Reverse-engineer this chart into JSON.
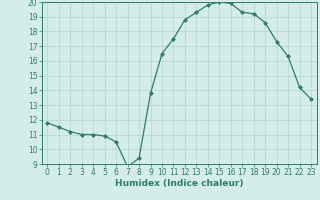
{
  "x": [
    0,
    1,
    2,
    3,
    4,
    5,
    6,
    7,
    8,
    9,
    10,
    11,
    12,
    13,
    14,
    15,
    16,
    17,
    18,
    19,
    20,
    21,
    22,
    23
  ],
  "y": [
    11.8,
    11.5,
    11.2,
    11.0,
    11.0,
    10.9,
    10.5,
    8.8,
    9.4,
    13.8,
    16.5,
    17.5,
    18.8,
    19.3,
    19.8,
    20.0,
    19.9,
    19.3,
    19.2,
    18.6,
    17.3,
    16.3,
    14.2,
    13.4
  ],
  "xlabel": "Humidex (Indice chaleur)",
  "ylim": [
    9,
    20
  ],
  "xlim": [
    -0.5,
    23.5
  ],
  "yticks": [
    9,
    10,
    11,
    12,
    13,
    14,
    15,
    16,
    17,
    18,
    19,
    20
  ],
  "xticks": [
    0,
    1,
    2,
    3,
    4,
    5,
    6,
    7,
    8,
    9,
    10,
    11,
    12,
    13,
    14,
    15,
    16,
    17,
    18,
    19,
    20,
    21,
    22,
    23
  ],
  "line_color": "#2d7d6e",
  "marker": "D",
  "marker_size": 2.0,
  "bg_color": "#d4edea",
  "grid_color": "#b8d8d4",
  "tick_fontsize": 5.5,
  "xlabel_fontsize": 6.5
}
